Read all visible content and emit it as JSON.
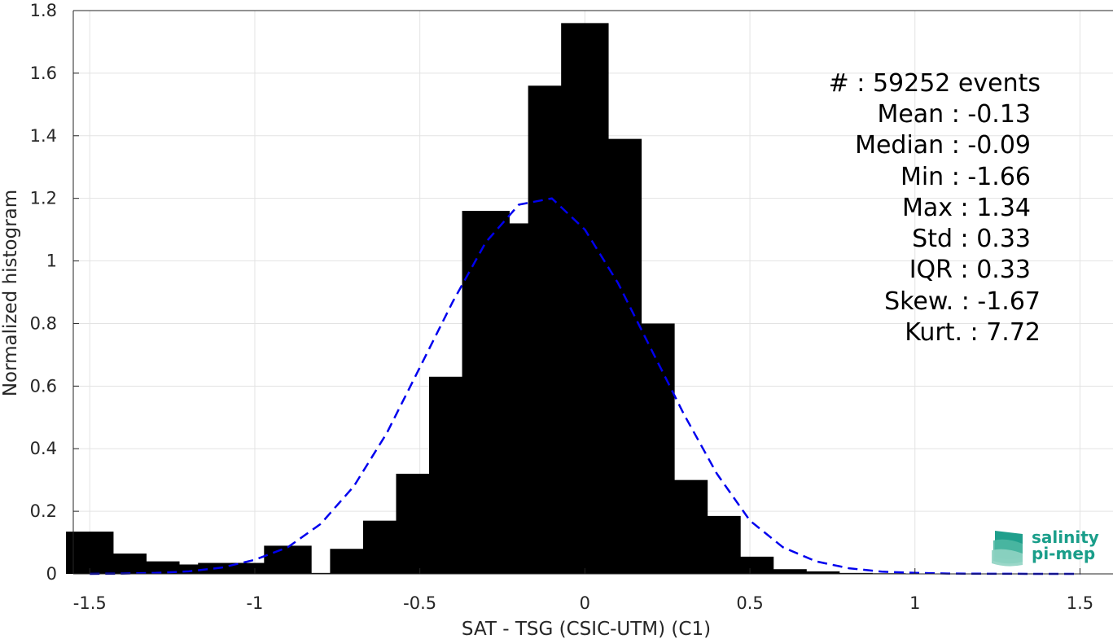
{
  "chart_data": {
    "type": "bar",
    "xlabel": "SAT - TSG (CSIC-UTM) (C1)",
    "ylabel": "Normalized histogram",
    "xlim": [
      -1.55,
      1.6
    ],
    "ylim": [
      0,
      1.8
    ],
    "xticks": [
      -1.5,
      -1,
      -0.5,
      0,
      0.5,
      1,
      1.5
    ],
    "xtick_labels": [
      "-1.5",
      "-1",
      "-0.5",
      "0",
      "0.5",
      "1",
      "1.5"
    ],
    "yticks": [
      0,
      0.2,
      0.4,
      0.6,
      0.8,
      1,
      1.2,
      1.4,
      1.6,
      1.8
    ],
    "ytick_labels": [
      "0",
      "0.2",
      "0.4",
      "0.6",
      "0.8",
      "1",
      "1.2",
      "1.4",
      "1.6",
      "1.8"
    ],
    "grid": true,
    "bar_color": "#000000",
    "curve_color": "#0000ee",
    "bars": {
      "x": [
        -1.5,
        -1.4,
        -1.3,
        -1.2,
        -1.1,
        -1.0,
        -0.9,
        -0.8,
        -0.7,
        -0.6,
        -0.5,
        -0.4,
        -0.3,
        -0.2,
        -0.1,
        0.0,
        0.1,
        0.2,
        0.3,
        0.4,
        0.5,
        0.6,
        0.7,
        0.8,
        0.9,
        1.0,
        1.1,
        1.2,
        1.3,
        1.4,
        1.5
      ],
      "values": [
        0.135,
        0.065,
        0.04,
        0.03,
        0.035,
        0.035,
        0.09,
        0.003,
        0.08,
        0.17,
        0.32,
        0.63,
        1.16,
        1.12,
        1.56,
        1.76,
        1.39,
        0.8,
        0.3,
        0.185,
        0.055,
        0.015,
        0.008,
        0.003,
        0.002,
        0.001,
        0.0005,
        0.0005,
        0.0003,
        0.0002,
        0.0002
      ]
    },
    "fit_curve": {
      "style": "dashed",
      "x": [
        -1.5,
        -1.4,
        -1.3,
        -1.2,
        -1.1,
        -1.0,
        -0.9,
        -0.8,
        -0.7,
        -0.6,
        -0.5,
        -0.4,
        -0.3,
        -0.2,
        -0.1,
        0.0,
        0.1,
        0.2,
        0.3,
        0.4,
        0.5,
        0.6,
        0.7,
        0.8,
        0.9,
        1.0,
        1.1,
        1.2,
        1.3,
        1.4,
        1.5
      ],
      "y": [
        0.0,
        0.001,
        0.003,
        0.008,
        0.02,
        0.045,
        0.085,
        0.16,
        0.28,
        0.45,
        0.66,
        0.87,
        1.06,
        1.18,
        1.2,
        1.1,
        0.93,
        0.72,
        0.51,
        0.32,
        0.17,
        0.085,
        0.04,
        0.018,
        0.007,
        0.003,
        0.001,
        0.0004,
        0.0002,
        0.0001,
        0.0
      ]
    },
    "stats": [
      "#  : 59252 events",
      "Mean : -0.13",
      "Median : -0.09",
      "Min : -1.66",
      "Max : 1.34",
      "Std : 0.33",
      "IQR : 0.33",
      "Skew. : -1.67",
      "Kurt. : 7.72"
    ]
  },
  "logo": {
    "line1": "salinity",
    "line2": "pi-mep",
    "color": "#1a9e8a"
  }
}
